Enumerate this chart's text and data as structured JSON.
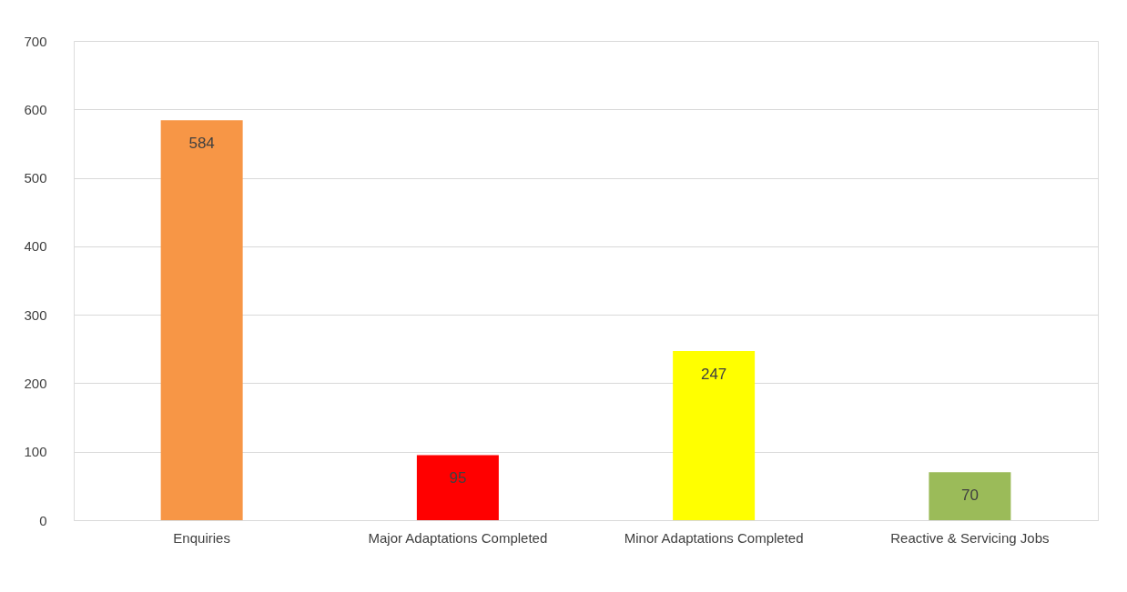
{
  "chart_data": {
    "type": "bar",
    "categories": [
      "Enquiries",
      "Major Adaptations\nCompleted",
      "Minor Adaptations\nCompleted",
      "Reactive & Servicing Jobs"
    ],
    "values": [
      584,
      95,
      247,
      70
    ],
    "colors": [
      "#f79646",
      "#ff0000",
      "#ffff00",
      "#9bbb59"
    ],
    "ylim": [
      0,
      700
    ],
    "yticks": [
      0,
      100,
      200,
      300,
      400,
      500,
      600,
      700
    ],
    "grid": "y",
    "data_labels": true
  }
}
